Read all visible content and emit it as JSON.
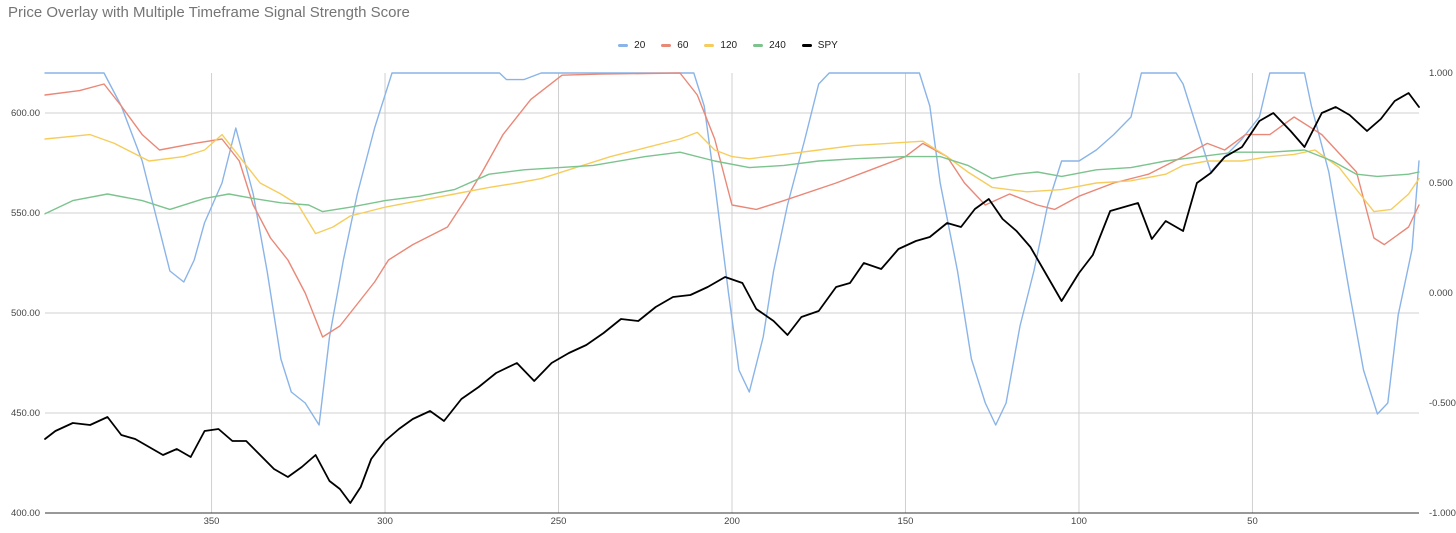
{
  "chart_data": {
    "type": "line",
    "title": "Price Overlay with Multiple Timeframe Signal Strength Score",
    "legend_position": "top",
    "grid": true,
    "x_reversed": true,
    "xlim": [
      398,
      2
    ],
    "x_ticks": [
      350,
      300,
      250,
      200,
      150,
      100,
      50
    ],
    "y_left_lim": [
      400,
      620
    ],
    "y_left_ticks": [
      "400.00",
      "450.00",
      "500.00",
      "550.00",
      "600.00"
    ],
    "y_right_lim": [
      -1,
      1
    ],
    "y_right_ticks": [
      "-1.000",
      "-0.500",
      "0.000",
      "0.500",
      "1.000"
    ],
    "colors": {
      "20": "#8ab4e8",
      "60": "#ea8878",
      "120": "#f6cd5c",
      "240": "#7cc38e",
      "SPY": "#000000"
    },
    "series": [
      {
        "name": "20",
        "axis": "right",
        "color": "#8ab4e8",
        "points": [
          [
            398,
            1.0
          ],
          [
            381,
            1.0
          ],
          [
            376,
            0.85
          ],
          [
            370,
            0.6
          ],
          [
            366,
            0.35
          ],
          [
            362,
            0.1
          ],
          [
            358,
            0.05
          ],
          [
            355,
            0.15
          ],
          [
            352,
            0.32
          ],
          [
            347,
            0.5
          ],
          [
            343,
            0.75
          ],
          [
            338,
            0.45
          ],
          [
            334,
            0.1
          ],
          [
            330,
            -0.3
          ],
          [
            327,
            -0.45
          ],
          [
            323,
            -0.5
          ],
          [
            319,
            -0.6
          ],
          [
            316,
            -0.2
          ],
          [
            312,
            0.15
          ],
          [
            308,
            0.45
          ],
          [
            303,
            0.75
          ],
          [
            298,
            1.0
          ],
          [
            267,
            1.0
          ],
          [
            265,
            0.97
          ],
          [
            260,
            0.97
          ],
          [
            255,
            1.0
          ],
          [
            211,
            1.0
          ],
          [
            208,
            0.85
          ],
          [
            205,
            0.5
          ],
          [
            201,
            0.0
          ],
          [
            198,
            -0.35
          ],
          [
            195,
            -0.45
          ],
          [
            191,
            -0.2
          ],
          [
            188,
            0.1
          ],
          [
            184,
            0.4
          ],
          [
            179,
            0.7
          ],
          [
            175,
            0.95
          ],
          [
            172,
            1.0
          ],
          [
            146,
            1.0
          ],
          [
            143,
            0.85
          ],
          [
            140,
            0.5
          ],
          [
            135,
            0.1
          ],
          [
            131,
            -0.3
          ],
          [
            127,
            -0.5
          ],
          [
            124,
            -0.6
          ],
          [
            121,
            -0.5
          ],
          [
            117,
            -0.15
          ],
          [
            113,
            0.1
          ],
          [
            109,
            0.4
          ],
          [
            105,
            0.6
          ],
          [
            100,
            0.6
          ],
          [
            95,
            0.65
          ],
          [
            90,
            0.72
          ],
          [
            85,
            0.8
          ],
          [
            82,
            1.0
          ],
          [
            72,
            1.0
          ],
          [
            70,
            0.95
          ],
          [
            66,
            0.75
          ],
          [
            62,
            0.55
          ],
          [
            58,
            0.62
          ],
          [
            53,
            0.7
          ],
          [
            48,
            0.8
          ],
          [
            45,
            1.0
          ],
          [
            35,
            1.0
          ],
          [
            33,
            0.85
          ],
          [
            28,
            0.55
          ],
          [
            22,
            0.0
          ],
          [
            18,
            -0.35
          ],
          [
            14,
            -0.55
          ],
          [
            11,
            -0.5
          ],
          [
            8,
            -0.1
          ],
          [
            4,
            0.2
          ],
          [
            2,
            0.6
          ]
        ]
      },
      {
        "name": "60",
        "axis": "right",
        "color": "#ea8878",
        "points": [
          [
            398,
            0.9
          ],
          [
            388,
            0.92
          ],
          [
            381,
            0.95
          ],
          [
            376,
            0.85
          ],
          [
            370,
            0.72
          ],
          [
            365,
            0.65
          ],
          [
            355,
            0.68
          ],
          [
            347,
            0.7
          ],
          [
            342,
            0.6
          ],
          [
            338,
            0.4
          ],
          [
            333,
            0.25
          ],
          [
            328,
            0.15
          ],
          [
            323,
            0.0
          ],
          [
            318,
            -0.2
          ],
          [
            313,
            -0.15
          ],
          [
            308,
            -0.05
          ],
          [
            303,
            0.05
          ],
          [
            299,
            0.15
          ],
          [
            292,
            0.22
          ],
          [
            282,
            0.3
          ],
          [
            277,
            0.42
          ],
          [
            272,
            0.55
          ],
          [
            266,
            0.72
          ],
          [
            258,
            0.88
          ],
          [
            249,
            0.99
          ],
          [
            238,
            0.995
          ],
          [
            215,
            1.0
          ],
          [
            210,
            0.9
          ],
          [
            205,
            0.7
          ],
          [
            200,
            0.4
          ],
          [
            193,
            0.38
          ],
          [
            185,
            0.42
          ],
          [
            170,
            0.5
          ],
          [
            160,
            0.56
          ],
          [
            150,
            0.62
          ],
          [
            145,
            0.68
          ],
          [
            138,
            0.62
          ],
          [
            133,
            0.5
          ],
          [
            127,
            0.4
          ],
          [
            120,
            0.45
          ],
          [
            112,
            0.4
          ],
          [
            107,
            0.38
          ],
          [
            100,
            0.44
          ],
          [
            90,
            0.5
          ],
          [
            80,
            0.54
          ],
          [
            70,
            0.62
          ],
          [
            63,
            0.68
          ],
          [
            58,
            0.65
          ],
          [
            52,
            0.72
          ],
          [
            45,
            0.72
          ],
          [
            38,
            0.8
          ],
          [
            30,
            0.72
          ],
          [
            20,
            0.55
          ],
          [
            15,
            0.25
          ],
          [
            12,
            0.22
          ],
          [
            5,
            0.3
          ],
          [
            2,
            0.4
          ]
        ]
      },
      {
        "name": "120",
        "axis": "right",
        "color": "#f6cd5c",
        "points": [
          [
            398,
            0.7
          ],
          [
            385,
            0.72
          ],
          [
            378,
            0.68
          ],
          [
            368,
            0.6
          ],
          [
            358,
            0.62
          ],
          [
            352,
            0.65
          ],
          [
            347,
            0.72
          ],
          [
            342,
            0.62
          ],
          [
            336,
            0.5
          ],
          [
            330,
            0.45
          ],
          [
            325,
            0.4
          ],
          [
            320,
            0.27
          ],
          [
            315,
            0.3
          ],
          [
            310,
            0.35
          ],
          [
            300,
            0.39
          ],
          [
            290,
            0.42
          ],
          [
            280,
            0.45
          ],
          [
            270,
            0.48
          ],
          [
            262,
            0.5
          ],
          [
            255,
            0.52
          ],
          [
            245,
            0.57
          ],
          [
            235,
            0.62
          ],
          [
            225,
            0.66
          ],
          [
            215,
            0.7
          ],
          [
            210,
            0.73
          ],
          [
            205,
            0.65
          ],
          [
            200,
            0.62
          ],
          [
            195,
            0.61
          ],
          [
            185,
            0.63
          ],
          [
            175,
            0.65
          ],
          [
            165,
            0.67
          ],
          [
            155,
            0.68
          ],
          [
            145,
            0.69
          ],
          [
            138,
            0.62
          ],
          [
            132,
            0.55
          ],
          [
            125,
            0.48
          ],
          [
            115,
            0.46
          ],
          [
            105,
            0.47
          ],
          [
            95,
            0.5
          ],
          [
            85,
            0.51
          ],
          [
            75,
            0.54
          ],
          [
            70,
            0.58
          ],
          [
            63,
            0.6
          ],
          [
            53,
            0.6
          ],
          [
            45,
            0.62
          ],
          [
            38,
            0.63
          ],
          [
            32,
            0.65
          ],
          [
            25,
            0.57
          ],
          [
            19,
            0.45
          ],
          [
            15,
            0.37
          ],
          [
            10,
            0.38
          ],
          [
            5,
            0.45
          ],
          [
            2,
            0.52
          ]
        ]
      },
      {
        "name": "240",
        "axis": "right",
        "color": "#7cc38e",
        "points": [
          [
            398,
            0.36
          ],
          [
            390,
            0.42
          ],
          [
            380,
            0.45
          ],
          [
            370,
            0.42
          ],
          [
            362,
            0.38
          ],
          [
            352,
            0.43
          ],
          [
            345,
            0.45
          ],
          [
            338,
            0.43
          ],
          [
            330,
            0.41
          ],
          [
            322,
            0.4
          ],
          [
            318,
            0.37
          ],
          [
            310,
            0.39
          ],
          [
            300,
            0.42
          ],
          [
            290,
            0.44
          ],
          [
            280,
            0.47
          ],
          [
            270,
            0.54
          ],
          [
            260,
            0.56
          ],
          [
            240,
            0.58
          ],
          [
            225,
            0.62
          ],
          [
            215,
            0.64
          ],
          [
            205,
            0.6
          ],
          [
            195,
            0.57
          ],
          [
            185,
            0.58
          ],
          [
            175,
            0.6
          ],
          [
            165,
            0.61
          ],
          [
            150,
            0.62
          ],
          [
            140,
            0.62
          ],
          [
            132,
            0.58
          ],
          [
            125,
            0.52
          ],
          [
            118,
            0.54
          ],
          [
            112,
            0.55
          ],
          [
            105,
            0.53
          ],
          [
            95,
            0.56
          ],
          [
            85,
            0.57
          ],
          [
            75,
            0.6
          ],
          [
            65,
            0.62
          ],
          [
            55,
            0.64
          ],
          [
            45,
            0.64
          ],
          [
            35,
            0.65
          ],
          [
            27,
            0.6
          ],
          [
            20,
            0.54
          ],
          [
            14,
            0.53
          ],
          [
            5,
            0.54
          ],
          [
            2,
            0.55
          ]
        ]
      },
      {
        "name": "SPY",
        "axis": "left",
        "color": "#000000",
        "points": [
          [
            398,
            437
          ],
          [
            395,
            441
          ],
          [
            390,
            445
          ],
          [
            385,
            444
          ],
          [
            380,
            448
          ],
          [
            376,
            439
          ],
          [
            372,
            437
          ],
          [
            368,
            433
          ],
          [
            364,
            429
          ],
          [
            360,
            432
          ],
          [
            356,
            428
          ],
          [
            352,
            441
          ],
          [
            348,
            442
          ],
          [
            344,
            436
          ],
          [
            340,
            436
          ],
          [
            336,
            429
          ],
          [
            332,
            422
          ],
          [
            328,
            418
          ],
          [
            324,
            423
          ],
          [
            320,
            429
          ],
          [
            316,
            416
          ],
          [
            313,
            412
          ],
          [
            310,
            405
          ],
          [
            307,
            413
          ],
          [
            304,
            427
          ],
          [
            300,
            436
          ],
          [
            296,
            442
          ],
          [
            292,
            447
          ],
          [
            287,
            451
          ],
          [
            283,
            446
          ],
          [
            278,
            457
          ],
          [
            273,
            463
          ],
          [
            268,
            470
          ],
          [
            262,
            475
          ],
          [
            257,
            466
          ],
          [
            252,
            475
          ],
          [
            247,
            480
          ],
          [
            242,
            484
          ],
          [
            237,
            490
          ],
          [
            232,
            497
          ],
          [
            227,
            496
          ],
          [
            222,
            503
          ],
          [
            217,
            508
          ],
          [
            212,
            509
          ],
          [
            207,
            513
          ],
          [
            202,
            518
          ],
          [
            197,
            515
          ],
          [
            193,
            502
          ],
          [
            188,
            496
          ],
          [
            184,
            489
          ],
          [
            180,
            498
          ],
          [
            175,
            501
          ],
          [
            170,
            513
          ],
          [
            166,
            515
          ],
          [
            162,
            525
          ],
          [
            157,
            522
          ],
          [
            152,
            532
          ],
          [
            147,
            536
          ],
          [
            143,
            538
          ],
          [
            138,
            545
          ],
          [
            134,
            543
          ],
          [
            130,
            552
          ],
          [
            126,
            557
          ],
          [
            122,
            547
          ],
          [
            118,
            541
          ],
          [
            114,
            533
          ],
          [
            110,
            521
          ],
          [
            105,
            506
          ],
          [
            100,
            520
          ],
          [
            96,
            529
          ],
          [
            91,
            551
          ],
          [
            87,
            553
          ],
          [
            83,
            555
          ],
          [
            79,
            537
          ],
          [
            75,
            546
          ],
          [
            70,
            541
          ],
          [
            66,
            565
          ],
          [
            62,
            570
          ],
          [
            58,
            578
          ],
          [
            53,
            583
          ],
          [
            48,
            596
          ],
          [
            44,
            600
          ],
          [
            39,
            591
          ],
          [
            35,
            583
          ],
          [
            30,
            600
          ],
          [
            26,
            603
          ],
          [
            22,
            599
          ],
          [
            17,
            591
          ],
          [
            13,
            597
          ],
          [
            9,
            606
          ],
          [
            5,
            610
          ],
          [
            2,
            603
          ]
        ]
      }
    ]
  }
}
